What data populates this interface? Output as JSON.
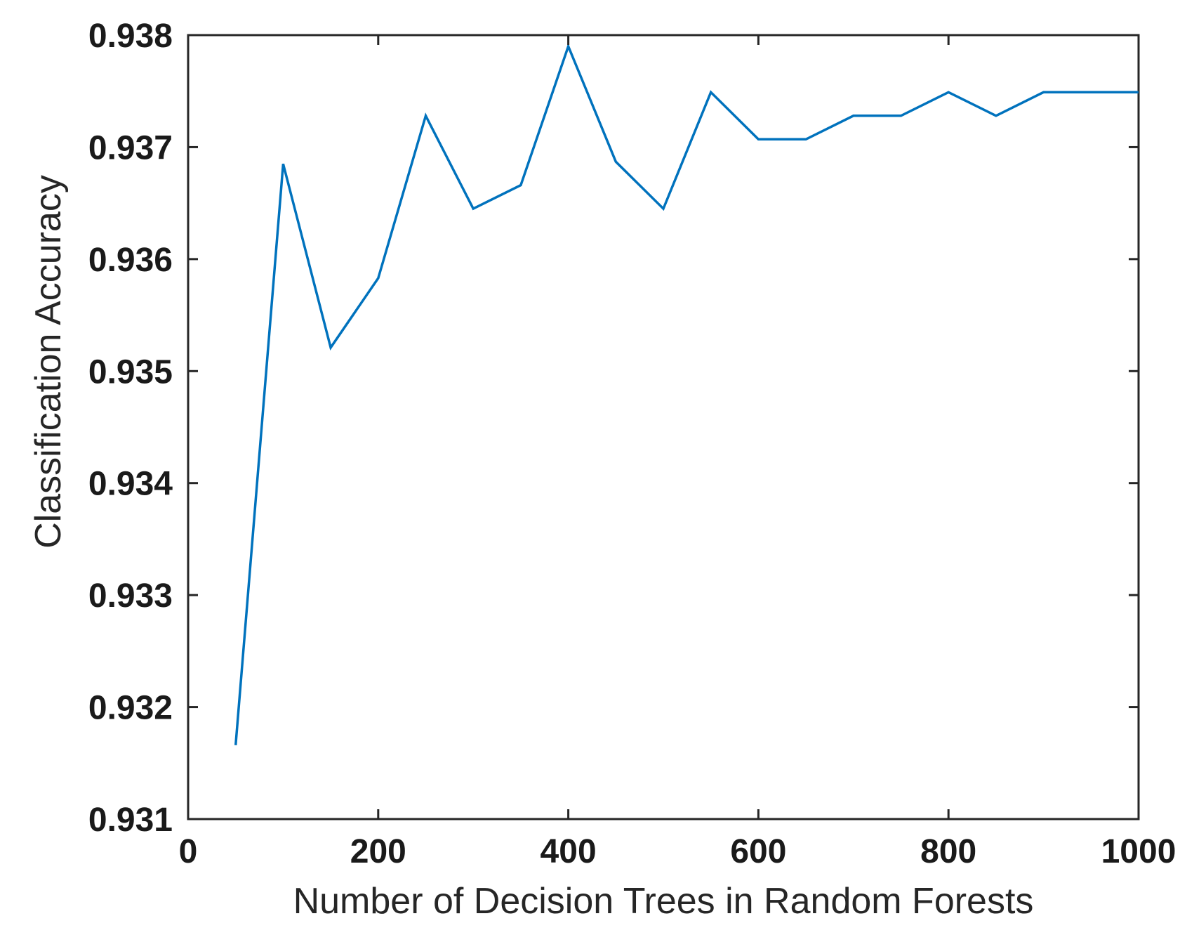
{
  "chart_data": {
    "type": "line",
    "title": "",
    "xlabel": "Number of Decision Trees in Random Forests",
    "ylabel": "Classification Accuracy",
    "xlim": [
      0,
      1000
    ],
    "ylim": [
      0.931,
      0.938
    ],
    "grid": false,
    "xticks": [
      0,
      200,
      400,
      600,
      800,
      1000
    ],
    "xtick_labels": [
      "0",
      "200",
      "400",
      "600",
      "800",
      "1000"
    ],
    "yticks": [
      0.931,
      0.932,
      0.933,
      0.934,
      0.935,
      0.936,
      0.937,
      0.938
    ],
    "ytick_labels": [
      "0.931",
      "0.932",
      "0.933",
      "0.934",
      "0.935",
      "0.936",
      "0.937",
      "0.938"
    ],
    "series": [
      {
        "color": "#0072BD",
        "x": [
          50,
          100,
          150,
          200,
          250,
          300,
          350,
          400,
          450,
          500,
          550,
          600,
          650,
          700,
          750,
          800,
          850,
          900,
          950,
          1000
        ],
        "y": [
          0.93166,
          0.93685,
          0.93521,
          0.93583,
          0.93728,
          0.93645,
          0.93666,
          0.9379,
          0.93687,
          0.93645,
          0.93749,
          0.93707,
          0.93707,
          0.93728,
          0.93728,
          0.93749,
          0.93728,
          0.93749,
          0.93749,
          0.93749
        ]
      }
    ]
  }
}
